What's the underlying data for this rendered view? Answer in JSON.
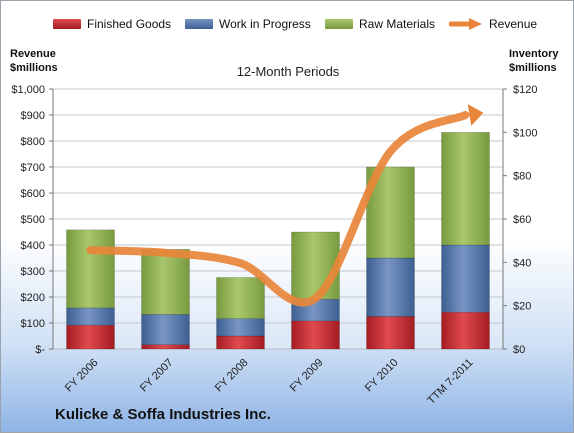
{
  "chart_data": {
    "type": "bar",
    "subtitle": "12-Month Periods",
    "company": "Kulicke & Soffa Industries Inc.",
    "left_axis_title": [
      "Revenue",
      "$millions"
    ],
    "right_axis_title": [
      "Inventory",
      "$millions"
    ],
    "categories": [
      "FY 2006",
      "FY 2007",
      "FY 2008",
      "FY 2009",
      "FY 2010",
      "TTM 7-2011"
    ],
    "left_ticks": [
      "$-",
      "$100",
      "$200",
      "$300",
      "$400",
      "$500",
      "$600",
      "$700",
      "$800",
      "$900",
      "$1,000"
    ],
    "right_ticks": [
      "$0",
      "$20",
      "$40",
      "$60",
      "$80",
      "$100",
      "$120"
    ],
    "left_ylim": [
      0,
      1000
    ],
    "right_ylim": [
      0,
      120
    ],
    "stacked": true,
    "legend_position": "top",
    "series": [
      {
        "name": "Finished Goods",
        "axis": "right",
        "kind": "bar",
        "color": "#c0262c",
        "values": [
          11,
          2,
          6,
          13,
          15,
          17
        ]
      },
      {
        "name": "Work in Progress",
        "axis": "right",
        "kind": "bar",
        "color": "#4f72a6",
        "values": [
          8,
          14,
          8,
          10,
          27,
          31
        ]
      },
      {
        "name": "Raw Materials",
        "axis": "right",
        "kind": "bar",
        "color": "#8fb050",
        "values": [
          36,
          30,
          19,
          31,
          42,
          52
        ]
      },
      {
        "name": "Revenue",
        "axis": "left",
        "kind": "line",
        "color": "#e8853a",
        "values": [
          380,
          370,
          330,
          195,
          760,
          900
        ]
      }
    ]
  }
}
